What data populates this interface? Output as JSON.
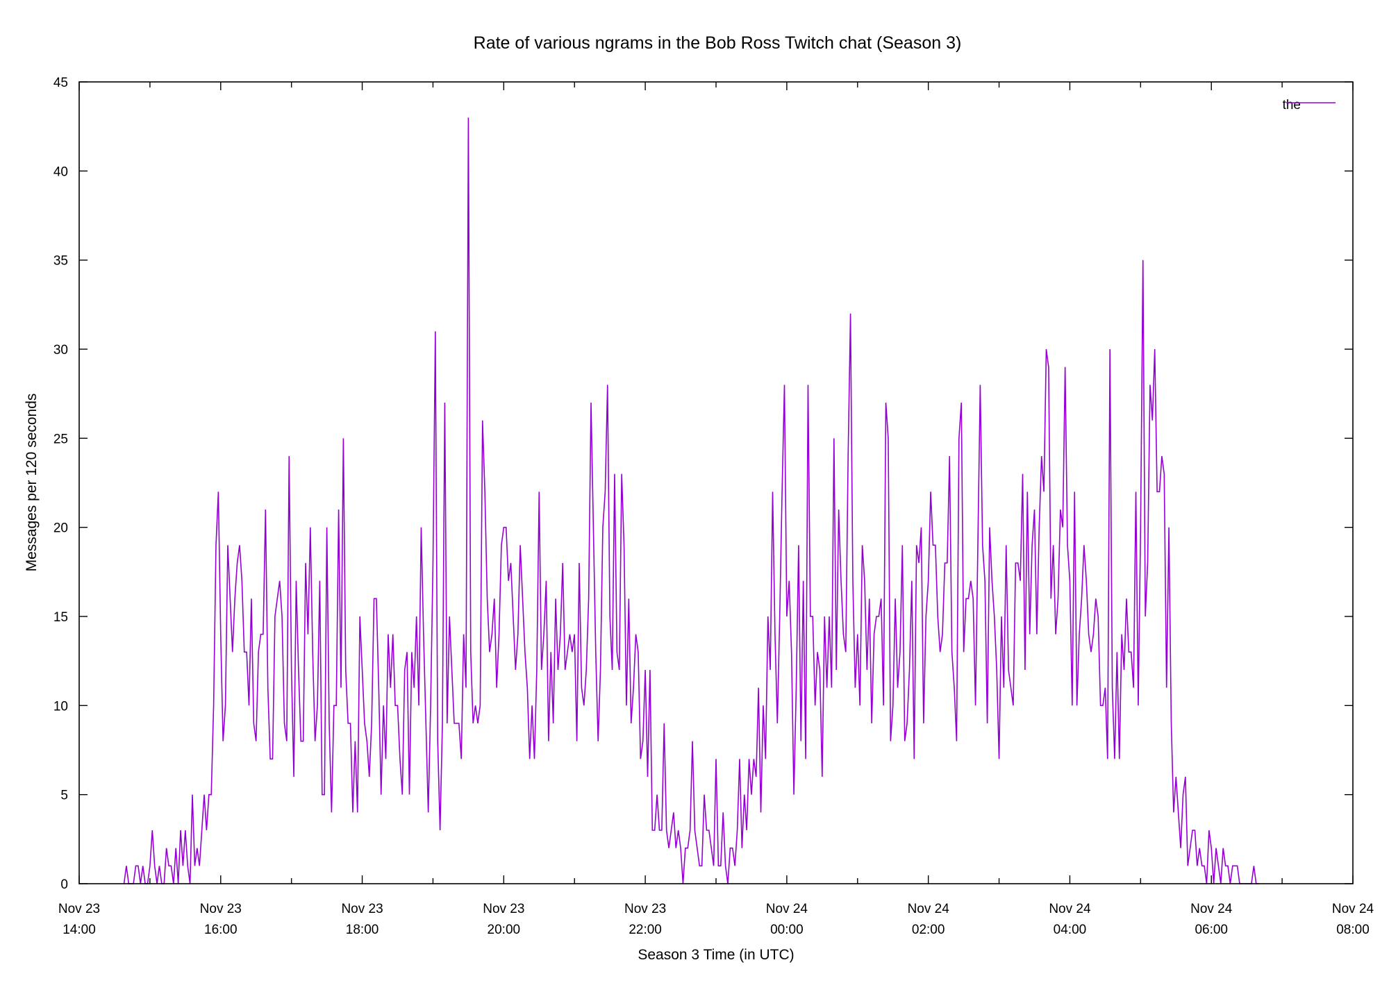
{
  "chart_data": {
    "type": "line",
    "title": "Rate of various ngrams in the Bob Ross Twitch chat (Season 3)",
    "xlabel": "Season 3 Time (in UTC)",
    "ylabel": "Messages per 120 seconds",
    "ylim": [
      0,
      45
    ],
    "yticks": [
      0,
      5,
      10,
      15,
      20,
      25,
      30,
      35,
      40,
      45
    ],
    "xlim": [
      "Nov 23 14:00",
      "Nov 24 08:00"
    ],
    "xticks": [
      {
        "date": "Nov 23",
        "time": "14:00"
      },
      {
        "date": "Nov 23",
        "time": "16:00"
      },
      {
        "date": "Nov 23",
        "time": "18:00"
      },
      {
        "date": "Nov 23",
        "time": "20:00"
      },
      {
        "date": "Nov 23",
        "time": "22:00"
      },
      {
        "date": "Nov 24",
        "time": "00:00"
      },
      {
        "date": "Nov 24",
        "time": "02:00"
      },
      {
        "date": "Nov 24",
        "time": "04:00"
      },
      {
        "date": "Nov 24",
        "time": "06:00"
      },
      {
        "date": "Nov 24",
        "time": "08:00"
      }
    ],
    "sample_interval_minutes": 2,
    "x_start": "Nov 23 14:38",
    "grid": false,
    "legend_position": "top-right",
    "series": [
      {
        "name": "the",
        "color": "#9400d3",
        "values": [
          0,
          1,
          0,
          0,
          0,
          1,
          1,
          0,
          1,
          0,
          0,
          1,
          3,
          1,
          0,
          1,
          0,
          0,
          2,
          1,
          1,
          0,
          2,
          0,
          3,
          1,
          3,
          1,
          0,
          5,
          1,
          2,
          1,
          3,
          5,
          3,
          5,
          5,
          10,
          19,
          22,
          14,
          8,
          10,
          19,
          16,
          13,
          16,
          18,
          19,
          17,
          13,
          13,
          10,
          16,
          9,
          8,
          13,
          14,
          14,
          21,
          11,
          7,
          7,
          15,
          16,
          17,
          15,
          9,
          8,
          24,
          12,
          6,
          17,
          12,
          8,
          8,
          18,
          14,
          20,
          13,
          8,
          10,
          17,
          5,
          5,
          20,
          9,
          4,
          10,
          10,
          21,
          11,
          25,
          12,
          9,
          9,
          4,
          8,
          4,
          15,
          12,
          9,
          8,
          6,
          9,
          16,
          16,
          11,
          5,
          10,
          7,
          14,
          11,
          14,
          10,
          10,
          7,
          5,
          12,
          13,
          5,
          13,
          11,
          15,
          10,
          20,
          14,
          9,
          4,
          10,
          18,
          31,
          8,
          3,
          9,
          27,
          9,
          15,
          12,
          9,
          9,
          9,
          7,
          14,
          11,
          43,
          13,
          9,
          10,
          9,
          10,
          26,
          22,
          16,
          13,
          14,
          16,
          11,
          14,
          19,
          20,
          20,
          17,
          18,
          15,
          12,
          14,
          19,
          16,
          13,
          11,
          7,
          10,
          7,
          12,
          22,
          12,
          14,
          17,
          8,
          13,
          9,
          16,
          12,
          14,
          18,
          12,
          13,
          14,
          13,
          14,
          8,
          18,
          11,
          10,
          12,
          16,
          27,
          20,
          13,
          8,
          12,
          20,
          22,
          28,
          15,
          12,
          23,
          13,
          12,
          23,
          19,
          10,
          16,
          9,
          11,
          14,
          13,
          7,
          8,
          12,
          6,
          12,
          3,
          3,
          5,
          3,
          3,
          9,
          3,
          2,
          3,
          4,
          2,
          3,
          2,
          0,
          2,
          2,
          3,
          8,
          3,
          2,
          1,
          1,
          5,
          3,
          3,
          2,
          1,
          7,
          1,
          1,
          4,
          1,
          0,
          2,
          2,
          1,
          3,
          7,
          2,
          5,
          3,
          7,
          5,
          7,
          6,
          11,
          4,
          10,
          7,
          15,
          12,
          22,
          14,
          9,
          15,
          22,
          28,
          15,
          17,
          13,
          5,
          11,
          19,
          8,
          17,
          7,
          28,
          15,
          15,
          10,
          13,
          12,
          6,
          15,
          11,
          15,
          11,
          25,
          12,
          21,
          17,
          14,
          13,
          24,
          32,
          17,
          11,
          14,
          10,
          19,
          17,
          12,
          16,
          9,
          14,
          15,
          15,
          16,
          10,
          27,
          25,
          8,
          10,
          16,
          11,
          13,
          19,
          8,
          9,
          12,
          17,
          7,
          19,
          18,
          20,
          9,
          15,
          17,
          22,
          19,
          19,
          15,
          13,
          14,
          18,
          18,
          24,
          13,
          11,
          8,
          25,
          27,
          13,
          16,
          16,
          17,
          16,
          10,
          19,
          28,
          19,
          17,
          9,
          20,
          17,
          15,
          12,
          7,
          15,
          11,
          19,
          12,
          11,
          10,
          18,
          18,
          17,
          23,
          12,
          22,
          14,
          19,
          21,
          14,
          20,
          24,
          22,
          30,
          29,
          16,
          19,
          14,
          16,
          21,
          20,
          29,
          19,
          17,
          10,
          22,
          10,
          14,
          16,
          19,
          17,
          14,
          13,
          14,
          16,
          15,
          10,
          10,
          11,
          7,
          30,
          11,
          7,
          13,
          7,
          14,
          12,
          16,
          13,
          13,
          11,
          22,
          10,
          20,
          35,
          15,
          18,
          28,
          26,
          30,
          22,
          22,
          24,
          23,
          11,
          20,
          9,
          4,
          6,
          4,
          2,
          5,
          6,
          1,
          2,
          3,
          3,
          1,
          2,
          1,
          1,
          0,
          3,
          2,
          0,
          2,
          1,
          0,
          2,
          1,
          1,
          0,
          1,
          1,
          1,
          0,
          0,
          0,
          0,
          0,
          0,
          1,
          0,
          0
        ]
      }
    ]
  }
}
